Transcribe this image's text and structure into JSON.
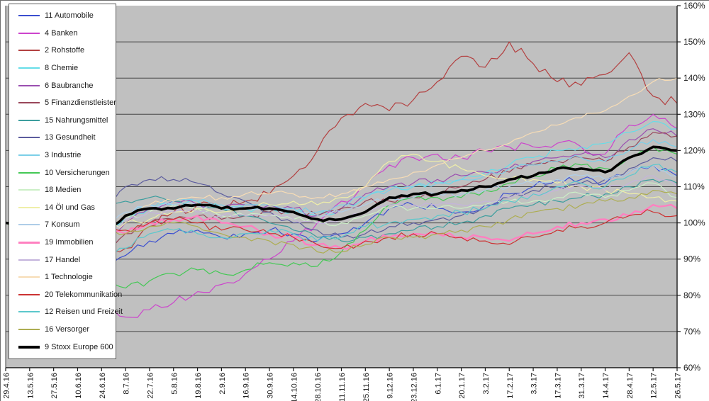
{
  "chart_data": {
    "type": "line",
    "xlabel": "",
    "ylabel": "",
    "ylim": [
      60,
      160
    ],
    "y_tick_labels": [
      "160%",
      "150%",
      "140%",
      "130%",
      "120%",
      "110%",
      "100%",
      "90%",
      "80%",
      "70%",
      "60%"
    ],
    "grid": "horizontal",
    "plot_bg_color": "#c0c0c0",
    "gridline_color": "#454545",
    "axis_color": "#1a1a1a",
    "legend_position": "overlay-top-left",
    "x_tick_labels": [
      "29.4.16",
      "13.5.16",
      "27.5.16",
      "10.6.16",
      "24.6.16",
      "8.7.16",
      "22.7.16",
      "5.8.16",
      "19.8.16",
      "2.9.16",
      "16.9.16",
      "30.9.16",
      "14.10.16",
      "28.10.16",
      "11.11.16",
      "25.11.16",
      "9.12.16",
      "23.12.16",
      "6.1.17",
      "20.1.17",
      "3.2.17",
      "17.2.17",
      "3.3.17",
      "17.3.17",
      "31.3.17",
      "14.4.17",
      "28.4.17",
      "12.5.17",
      "26.5.17"
    ],
    "series": [
      {
        "name": "11 Automobile",
        "color": "#3b4fd0",
        "width": 1.2,
        "jitter": 1.0,
        "values": [
          100,
          99,
          100,
          98,
          88,
          91,
          95,
          97,
          98,
          96,
          97,
          98,
          97,
          95,
          97,
          100,
          104,
          105,
          104,
          103,
          105,
          108,
          110,
          112,
          112,
          111,
          114,
          116,
          113
        ]
      },
      {
        "name": "4 Banken",
        "color": "#cc44cc",
        "width": 1.2,
        "jitter": 1.3,
        "values": [
          100,
          97,
          96,
          92,
          80,
          74,
          76,
          78,
          81,
          83,
          86,
          90,
          95,
          100,
          106,
          110,
          116,
          118,
          119,
          118,
          120,
          121,
          121,
          122,
          121,
          119,
          127,
          130,
          126
        ]
      },
      {
        "name": "2 Rohstoffe",
        "color": "#b34040",
        "width": 1.2,
        "jitter": 1.4,
        "values": [
          100,
          96,
          95,
          97,
          90,
          93,
          99,
          103,
          105,
          104,
          106,
          108,
          113,
          120,
          129,
          133,
          131,
          134,
          139,
          146,
          143,
          150,
          144,
          139,
          138,
          141,
          147,
          135,
          133
        ]
      },
      {
        "name": "8 Chemie",
        "color": "#66dde8",
        "width": 1.2,
        "jitter": 1.0,
        "values": [
          100,
          100,
          102,
          101,
          95,
          101,
          104,
          105,
          106,
          104,
          104,
          104,
          103,
          102,
          104,
          107,
          110,
          110,
          111,
          112,
          114,
          116,
          118,
          120,
          121,
          122,
          125,
          128,
          126
        ]
      },
      {
        "name": "6 Baubranche",
        "color": "#9a4fb0",
        "width": 1.2,
        "jitter": 1.0,
        "values": [
          100,
          99,
          101,
          100,
          93,
          100,
          104,
          106,
          105,
          104,
          105,
          105,
          104,
          102,
          104,
          108,
          110,
          111,
          112,
          113,
          114,
          115,
          117,
          118,
          119,
          118,
          123,
          126,
          124
        ]
      },
      {
        "name": "5 Finanzdienstleister",
        "color": "#99465a",
        "width": 1.2,
        "jitter": 1.0,
        "values": [
          100,
          99,
          100,
          99,
          92,
          97,
          100,
          101,
          102,
          101,
          102,
          103,
          103,
          102,
          104,
          106,
          106,
          107,
          108,
          110,
          112,
          114,
          116,
          117,
          118,
          117,
          121,
          125,
          124
        ]
      },
      {
        "name": "15 Nahrungsmittel",
        "color": "#3d9e9e",
        "width": 1.2,
        "jitter": 0.9,
        "values": [
          100,
          101,
          103,
          104,
          103,
          106,
          107,
          106,
          105,
          104,
          102,
          100,
          98,
          96,
          95,
          96,
          97,
          98,
          99,
          100,
          102,
          104,
          105,
          106,
          107,
          108,
          110,
          112,
          111
        ]
      },
      {
        "name": "13 Gesundheit",
        "color": "#5c5c9e",
        "width": 1.2,
        "jitter": 0.9,
        "values": [
          100,
          101,
          103,
          105,
          104,
          110,
          112,
          112,
          111,
          108,
          106,
          103,
          100,
          98,
          96,
          97,
          99,
          100,
          101,
          102,
          104,
          107,
          109,
          110,
          111,
          112,
          115,
          118,
          117
        ]
      },
      {
        "name": "3 Industrie",
        "color": "#7ccfe8",
        "width": 1.2,
        "jitter": 0.9,
        "values": [
          100,
          100,
          102,
          101,
          95,
          102,
          105,
          106,
          106,
          105,
          105,
          105,
          104,
          103,
          105,
          107,
          109,
          110,
          111,
          112,
          113,
          115,
          116,
          117,
          118,
          117,
          120,
          123,
          121
        ]
      },
      {
        "name": "10 Versicherungen",
        "color": "#44c855",
        "width": 1.2,
        "jitter": 1.0,
        "values": [
          100,
          98,
          98,
          96,
          86,
          82,
          84,
          86,
          87,
          86,
          87,
          89,
          89,
          88,
          92,
          98,
          105,
          107,
          107,
          107,
          109,
          111,
          113,
          115,
          116,
          115,
          118,
          121,
          119
        ]
      },
      {
        "name": "18 Medien",
        "color": "#cbefc6",
        "width": 1.2,
        "jitter": 0.8,
        "values": [
          100,
          100,
          101,
          100,
          95,
          101,
          103,
          105,
          104,
          102,
          102,
          102,
          101,
          100,
          100,
          102,
          104,
          104,
          104,
          104,
          105,
          106,
          106,
          107,
          108,
          107,
          109,
          111,
          107
        ]
      },
      {
        "name": "14 Öl und Gas",
        "color": "#efefa8",
        "width": 1.2,
        "jitter": 0.9,
        "values": [
          100,
          99,
          101,
          102,
          98,
          100,
          101,
          103,
          104,
          103,
          104,
          105,
          106,
          105,
          107,
          110,
          117,
          119,
          117,
          115,
          113,
          112,
          112,
          111,
          110,
          109,
          108,
          107,
          106
        ]
      },
      {
        "name": "7 Konsum",
        "color": "#aecde8",
        "width": 1.2,
        "jitter": 0.8,
        "values": [
          100,
          100,
          102,
          102,
          97,
          103,
          105,
          105,
          105,
          104,
          104,
          104,
          103,
          102,
          103,
          105,
          107,
          107,
          108,
          108,
          109,
          110,
          111,
          112,
          113,
          112,
          114,
          116,
          113
        ]
      },
      {
        "name": "19 Immobilien",
        "color": "#ff80c0",
        "width": 2.4,
        "jitter": 0.9,
        "values": [
          100,
          100,
          102,
          103,
          99,
          97,
          100,
          101,
          102,
          100,
          99,
          97,
          96,
          94,
          93,
          95,
          96,
          97,
          97,
          96,
          96,
          95,
          97,
          99,
          100,
          101,
          102,
          105,
          104
        ]
      },
      {
        "name": "17 Handel",
        "color": "#c4b3dc",
        "width": 1.2,
        "jitter": 0.8,
        "values": [
          100,
          99,
          101,
          100,
          96,
          101,
          103,
          103,
          103,
          102,
          102,
          102,
          101,
          100,
          101,
          103,
          105,
          105,
          105,
          105,
          106,
          107,
          108,
          109,
          110,
          109,
          111,
          113,
          110
        ]
      },
      {
        "name": "1 Technologie",
        "color": "#f7dcb5",
        "width": 1.2,
        "jitter": 0.8,
        "values": [
          100,
          100,
          102,
          101,
          96,
          102,
          105,
          106,
          107,
          107,
          108,
          108,
          108,
          107,
          108,
          110,
          112,
          114,
          116,
          118,
          120,
          122,
          125,
          127,
          129,
          131,
          135,
          139,
          140
        ]
      },
      {
        "name": "20 Telekommunikation",
        "color": "#cc3333",
        "width": 1.2,
        "jitter": 1.0,
        "values": [
          100,
          99,
          101,
          102,
          97,
          98,
          100,
          101,
          100,
          98,
          98,
          97,
          96,
          94,
          93,
          95,
          96,
          97,
          97,
          96,
          95,
          94,
          96,
          98,
          99,
          100,
          102,
          103,
          102
        ]
      },
      {
        "name": "12 Reisen und Freizeit",
        "color": "#5cc8cc",
        "width": 1.2,
        "jitter": 1.0,
        "values": [
          100,
          99,
          100,
          98,
          90,
          93,
          97,
          98,
          97,
          96,
          97,
          98,
          97,
          95,
          96,
          99,
          100,
          101,
          102,
          103,
          104,
          106,
          108,
          110,
          111,
          110,
          113,
          116,
          114
        ]
      },
      {
        "name": "16 Versorger",
        "color": "#adad52",
        "width": 1.2,
        "jitter": 0.9,
        "values": [
          100,
          100,
          101,
          101,
          97,
          97,
          99,
          100,
          99,
          97,
          96,
          95,
          94,
          92,
          92,
          94,
          96,
          96,
          97,
          98,
          99,
          101,
          103,
          104,
          105,
          106,
          107,
          109,
          108
        ]
      },
      {
        "name": "9 Stoxx Europe 600",
        "color": "#000000",
        "width": 3.6,
        "jitter": 0.45,
        "values": [
          100,
          100,
          101,
          102,
          96,
          102,
          104,
          104,
          105,
          104,
          104,
          104,
          103,
          101,
          101,
          103,
          107,
          108,
          108,
          109,
          110,
          112,
          113,
          115,
          115,
          114,
          118,
          121,
          120
        ]
      }
    ]
  }
}
